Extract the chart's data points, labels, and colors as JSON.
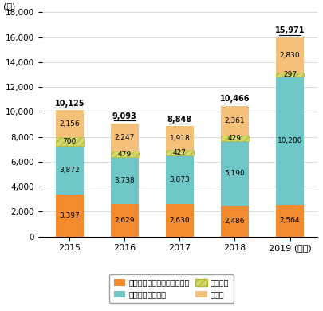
{
  "years": [
    "2015",
    "2016",
    "2017",
    "2018",
    "2019 (年度)"
  ],
  "internet": [
    3397,
    2629,
    2630,
    2486,
    2564
  ],
  "mobile": [
    3872,
    3738,
    3873,
    5190,
    10280
  ],
  "fixed": [
    700,
    479,
    427,
    429,
    297
  ],
  "other": [
    2156,
    2247,
    1918,
    2361,
    2830
  ],
  "totals": [
    10125,
    9093,
    8848,
    10466,
    15971
  ],
  "colors": {
    "internet": "#f28a30",
    "mobile": "#6ec6c6",
    "fixed": "#d4d870",
    "other": "#f5c07a"
  },
  "ylabel": "(件)",
  "ylim": [
    0,
    18000
  ],
  "yticks": [
    0,
    2000,
    4000,
    6000,
    8000,
    10000,
    12000,
    14000,
    16000,
    18000
  ],
  "legend_labels": [
    "インターネット通信サービス",
    "移動通信サービス",
    "固定電話",
    "その他"
  ],
  "bar_width": 0.5
}
